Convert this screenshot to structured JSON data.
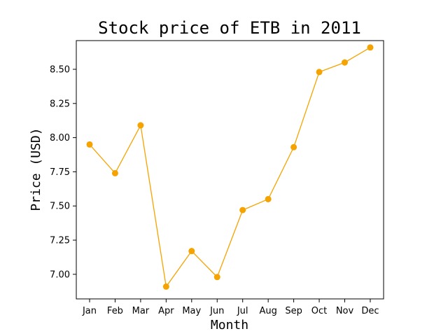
{
  "chart_data": {
    "type": "line",
    "title": "Stock price of ETB in 2011",
    "xlabel": "Month",
    "ylabel": "Price (USD)",
    "categories": [
      "Jan",
      "Feb",
      "Mar",
      "Apr",
      "May",
      "Jun",
      "Jul",
      "Aug",
      "Sep",
      "Oct",
      "Nov",
      "Dec"
    ],
    "series": [
      {
        "values": [
          7.95,
          7.74,
          8.09,
          6.91,
          7.17,
          6.98,
          7.47,
          7.55,
          7.93,
          8.48,
          8.55,
          8.66
        ]
      }
    ],
    "ylim": [
      6.82,
      8.71
    ],
    "yticks": [
      7.0,
      7.25,
      7.5,
      7.75,
      8.0,
      8.25,
      8.5
    ],
    "ytick_labels": [
      "7.00",
      "7.25",
      "7.50",
      "7.75",
      "8.00",
      "8.25",
      "8.50"
    ],
    "line_color": "#f5a300",
    "marker": "circle",
    "grid": false,
    "legend": false
  }
}
